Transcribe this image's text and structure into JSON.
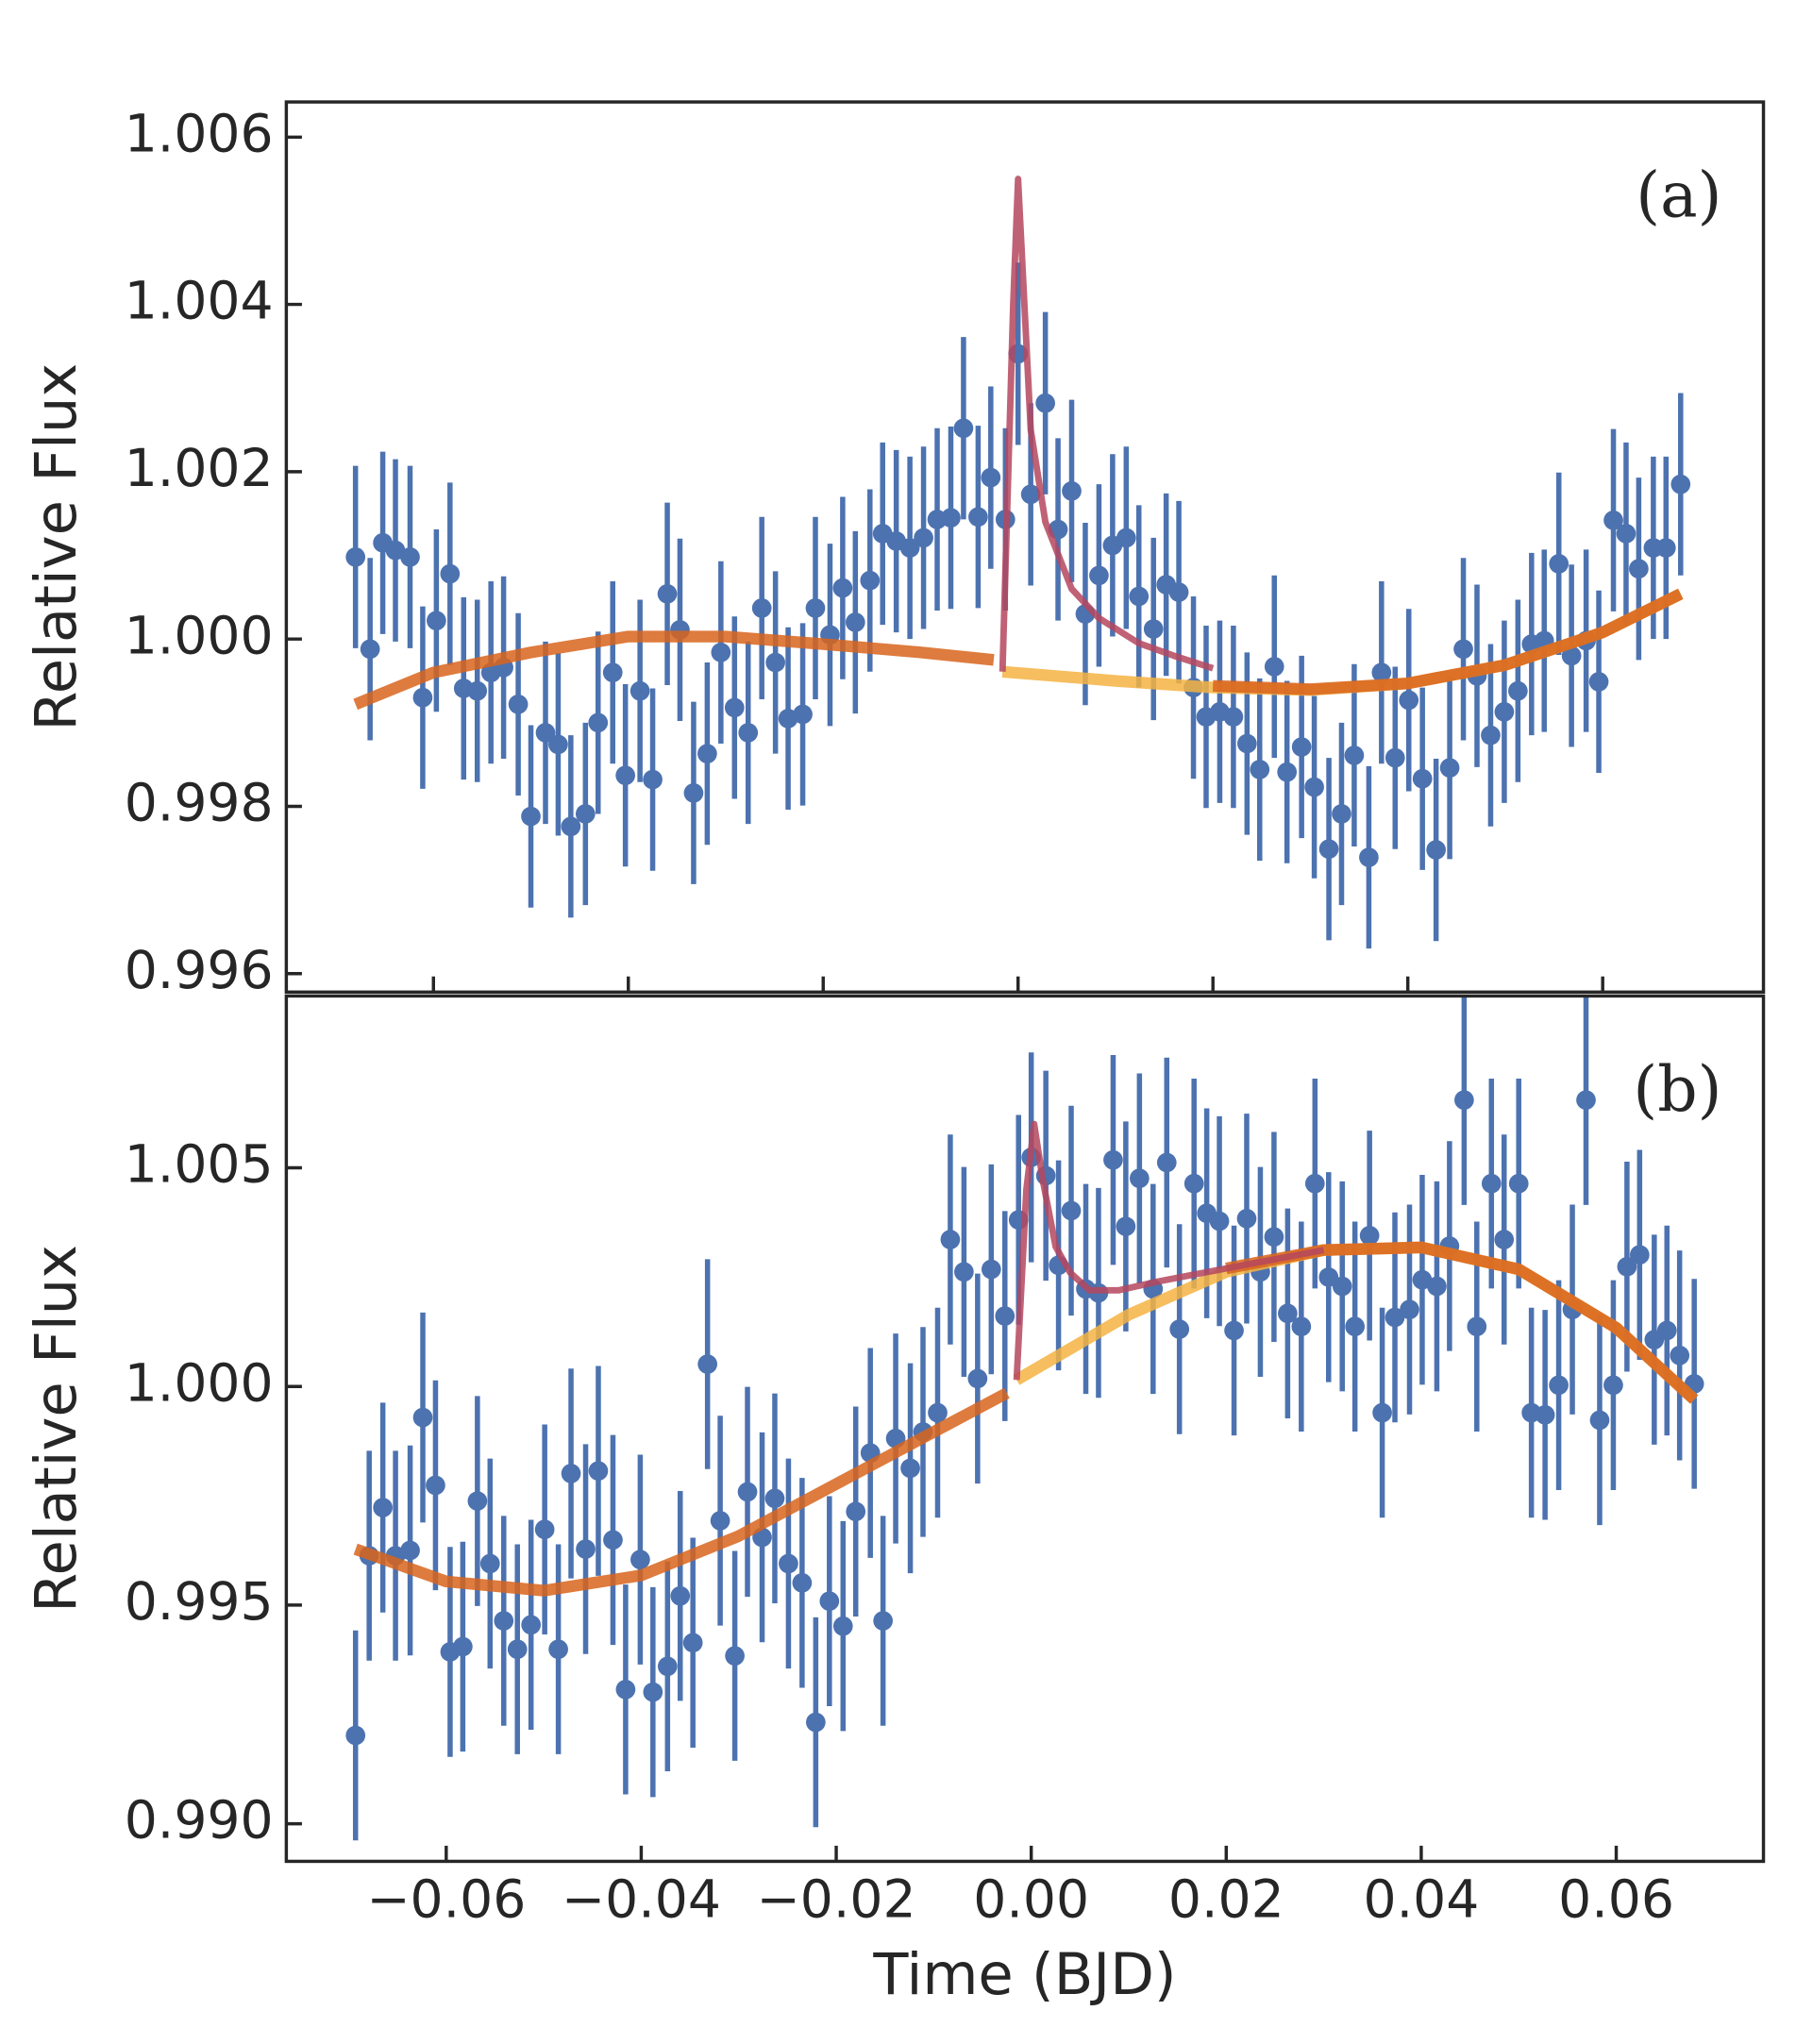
{
  "chart_data": [
    {
      "type": "scatter",
      "annotation": "(a)",
      "ylabel": "Relative Flux",
      "color": "#4c72b0",
      "yerr": 0.00109,
      "x": [
        -0.068,
        -0.0665,
        -0.0652,
        -0.0639,
        -0.0624,
        -0.0611,
        -0.0597,
        -0.0583,
        -0.0569,
        -0.0555,
        -0.0541,
        -0.0528,
        -0.0513,
        -0.05,
        -0.0485,
        -0.0472,
        -0.0459,
        -0.0444,
        -0.0431,
        -0.0416,
        -0.0403,
        -0.0388,
        -0.0375,
        -0.036,
        -0.0347,
        -0.0333,
        -0.0319,
        -0.0305,
        -0.0291,
        -0.0277,
        -0.0263,
        -0.0249,
        -0.0236,
        -0.0221,
        -0.0208,
        -0.0193,
        -0.018,
        -0.0167,
        -0.0152,
        -0.0139,
        -0.0125,
        -0.0111,
        -0.0097,
        -0.0083,
        -0.0069,
        -0.0056,
        -0.0041,
        -0.0028,
        -0.0013,
        0.0,
        0.0013,
        0.0028,
        0.0041,
        0.0055,
        0.0069,
        0.0083,
        0.0097,
        0.0111,
        0.0124,
        0.0139,
        0.0152,
        0.0165,
        0.018,
        0.0193,
        0.0207,
        0.0221,
        0.0235,
        0.0248,
        0.0263,
        0.0276,
        0.0291,
        0.0304,
        0.0319,
        0.0332,
        0.0345,
        0.036,
        0.0373,
        0.0387,
        0.0401,
        0.0415,
        0.0429,
        0.0443,
        0.0457,
        0.0471,
        0.0485,
        0.0499,
        0.0513,
        0.0527,
        0.054,
        0.0555,
        0.0568,
        0.0583,
        0.0596,
        0.0611,
        0.0624,
        0.0637,
        0.0652,
        0.0665,
        0.068
      ],
      "values": [
        1.00098,
        0.99988,
        1.00115,
        1.00106,
        1.00098,
        0.9993,
        1.00022,
        1.00078,
        0.99941,
        0.99938,
        0.9996,
        0.99966,
        0.99922,
        0.99788,
        0.99888,
        0.99874,
        0.99776,
        0.99791,
        0.999,
        0.9996,
        0.99837,
        0.99938,
        0.99832,
        1.00054,
        1.00011,
        0.99816,
        0.99863,
        0.99984,
        0.99918,
        0.99888,
        1.00037,
        0.99972,
        0.99905,
        0.9991,
        1.00037,
        1.00005,
        1.00061,
        1.0002,
        1.0007,
        1.00126,
        1.00117,
        1.00109,
        1.00121,
        1.00143,
        1.00145,
        1.00252,
        1.00146,
        1.00193,
        1.00143,
        1.00341,
        1.00173,
        1.00282,
        1.00131,
        1.00177,
        1.0003,
        1.00076,
        1.00112,
        1.00121,
        1.00051,
        1.00012,
        1.00065,
        1.00056,
        0.99942,
        0.99907,
        0.99913,
        0.99907,
        0.99875,
        0.99844,
        0.99967,
        0.99841,
        0.99871,
        0.99823,
        0.99749,
        0.99791,
        0.99861,
        0.99739,
        0.9996,
        0.99858,
        0.99927,
        0.99833,
        0.99748,
        0.99846,
        0.99988,
        0.99956,
        0.99885,
        0.99913,
        0.99938,
        0.99994,
        0.99998,
        1.0009,
        0.9998,
        0.99998,
        0.99949,
        1.00142,
        1.00126,
        1.00084,
        1.00109,
        1.00109,
        1.00185
      ],
      "lines": [
        {
          "color": "#d8641c",
          "x": [
            -0.068,
            -0.06,
            -0.05,
            -0.04,
            -0.03,
            -0.02,
            -0.01,
            -0.0025
          ],
          "values": [
            0.99922,
            0.9996,
            0.99984,
            1.00003,
            1.00003,
            0.99994,
            0.99984,
            0.99975
          ]
        },
        {
          "color": "#f5b342",
          "x": [
            -0.0016,
            0.01,
            0.02,
            0.03,
            0.04,
            0.05,
            0.06,
            0.068
          ],
          "values": [
            0.99961,
            0.9995,
            0.99942,
            0.99939,
            0.99947,
            0.99969,
            1.00008,
            1.00054
          ]
        },
        {
          "color": "#d8641c",
          "x": [
            0.02,
            0.03,
            0.04,
            0.05,
            0.06,
            0.068
          ],
          "values": [
            0.99944,
            0.9994,
            0.99947,
            0.99969,
            1.00008,
            1.00054
          ]
        },
        {
          "color": "#b5475e",
          "x": [
            -0.0016,
            -0.0005,
            0.0,
            0.0013,
            0.0028,
            0.0055,
            0.0083,
            0.0124,
            0.016,
            0.02
          ],
          "values": [
            0.99961,
            1.004,
            1.0055,
            1.0025,
            1.0014,
            1.0006,
            1.00025,
            0.99995,
            0.9998,
            0.99965
          ]
        }
      ],
      "xlim": [
        -0.0751,
        0.0765
      ],
      "ylim": [
        0.99578,
        1.00642
      ],
      "xticks": [
        -0.06,
        -0.04,
        -0.02,
        0,
        0.02,
        0.04,
        0.06
      ],
      "yticks": [
        0.996,
        0.998,
        {
          "value": 1.0,
          "label": "1.000"
        },
        1.002,
        1.004,
        1.006
      ]
    },
    {
      "type": "scatter",
      "annotation": "(b)",
      "ylabel": "Relative Flux",
      "xlabel": "Time (BJD)",
      "color": "#4c72b0",
      "yerr": 0.0024,
      "x": [
        -0.0693,
        -0.0679,
        -0.0665,
        -0.0652,
        -0.0637,
        -0.0624,
        -0.0611,
        -0.0596,
        -0.0583,
        -0.0568,
        -0.0555,
        -0.0541,
        -0.0527,
        -0.0513,
        -0.0499,
        -0.0485,
        -0.0472,
        -0.0457,
        -0.0444,
        -0.0429,
        -0.0416,
        -0.0401,
        -0.0388,
        -0.0373,
        -0.036,
        -0.0347,
        -0.0332,
        -0.0319,
        -0.0304,
        -0.0291,
        -0.0276,
        -0.0263,
        -0.0249,
        -0.0235,
        -0.0221,
        -0.0207,
        -0.0193,
        -0.018,
        -0.0165,
        -0.0152,
        -0.0139,
        -0.0124,
        -0.0111,
        -0.0096,
        -0.0083,
        -0.0069,
        -0.0055,
        -0.0041,
        -0.0027,
        -0.0013,
        0.0,
        0.0015,
        0.0028,
        0.0041,
        0.0056,
        0.0069,
        0.0084,
        0.0097,
        0.0111,
        0.0125,
        0.0139,
        0.0152,
        0.0167,
        0.018,
        0.0193,
        0.0208,
        0.0221,
        0.0235,
        0.0249,
        0.0263,
        0.0277,
        0.0291,
        0.0305,
        0.0319,
        0.0332,
        0.0347,
        0.036,
        0.0373,
        0.0388,
        0.0401,
        0.0416,
        0.0429,
        0.0444,
        0.0457,
        0.0472,
        0.0485,
        0.05,
        0.0513,
        0.0527,
        0.0541,
        0.0555,
        0.0569,
        0.0583,
        0.0597,
        0.0611,
        0.0624,
        0.0639,
        0.0652,
        0.0665,
        0.068
      ],
      "values": [
        0.99202,
        0.99613,
        0.99723,
        0.99613,
        0.99625,
        0.99929,
        0.99774,
        0.99393,
        0.99405,
        0.99738,
        0.99595,
        0.99464,
        0.99399,
        0.99455,
        0.99673,
        0.99399,
        0.99801,
        0.99628,
        0.99807,
        0.99649,
        0.99307,
        0.99604,
        0.99301,
        0.9936,
        0.99521,
        0.99414,
        1.00051,
        0.99693,
        0.99384,
        0.99759,
        0.99655,
        0.99744,
        0.99595,
        0.99551,
        0.99232,
        0.99509,
        0.99452,
        0.99714,
        0.99848,
        0.99464,
        0.99881,
        0.99813,
        0.99896,
        0.9994,
        1.00336,
        1.00262,
        1.00018,
        1.00268,
        1.00161,
        1.00381,
        1.00524,
        1.00482,
        1.00277,
        1.00402,
        1.00223,
        1.00214,
        1.00518,
        1.00366,
        1.00476,
        1.00223,
        1.00512,
        1.00131,
        1.00464,
        1.00396,
        1.00378,
        1.00128,
        1.00384,
        1.00262,
        1.00342,
        1.00167,
        1.00137,
        1.00464,
        1.0025,
        1.00229,
        1.00137,
        1.00345,
        0.9994,
        1.00158,
        1.00176,
        1.00244,
        1.00229,
        1.00321,
        1.00655,
        1.00137,
        1.00464,
        1.00336,
        1.00464,
        0.9994,
        0.99935,
        1.00003,
        1.00176,
        1.00655,
        0.99923,
        1.00003,
        1.00274,
        1.00301,
        1.00107,
        1.00128,
        1.00071,
        1.00006
      ],
      "lines": [
        {
          "color": "#d8641c",
          "x": [
            -0.0693,
            -0.06,
            -0.05,
            -0.04,
            -0.03,
            -0.02,
            -0.01,
            -0.0025
          ],
          "values": [
            0.99628,
            0.99554,
            0.99533,
            0.99568,
            0.99658,
            0.99777,
            0.99896,
            0.99985
          ]
        },
        {
          "color": "#f5b342",
          "x": [
            -0.0015,
            0.01,
            0.02,
            0.03,
            0.04,
            0.05,
            0.06,
            0.068
          ],
          "values": [
            1.00015,
            1.00164,
            1.00262,
            1.00312,
            1.00318,
            1.00268,
            1.00134,
            0.9997
          ]
        },
        {
          "color": "#d8641c",
          "x": [
            0.02,
            0.03,
            0.04,
            0.05,
            0.06,
            0.068
          ],
          "values": [
            1.0027,
            1.00312,
            1.00318,
            1.00268,
            1.00134,
            0.9997
          ]
        },
        {
          "color": "#b5475e",
          "x": [
            -0.0015,
            -0.0005,
            0.0003,
            0.0012,
            0.0025,
            0.004,
            0.006,
            0.009,
            0.013,
            0.02,
            0.03
          ],
          "values": [
            1.00015,
            1.0045,
            1.006,
            1.0047,
            1.0032,
            1.0026,
            1.0022,
            1.0022,
            1.0024,
            1.0027,
            1.00312
          ]
        }
      ],
      "xlim": [
        -0.0764,
        0.0751
      ],
      "ylim": [
        0.98914,
        1.00893
      ],
      "xticks": [
        {
          "value": -0.06,
          "label": "−0.06"
        },
        {
          "value": -0.04,
          "label": "−0.04"
        },
        {
          "value": -0.02,
          "label": "−0.02"
        },
        {
          "value": 0,
          "label": "0.00"
        },
        0.02,
        0.04,
        0.06
      ],
      "yticks": [
        {
          "value": 0.99,
          "label": "0.990"
        },
        0.995,
        {
          "value": 1.0,
          "label": "1.000"
        },
        1.005
      ]
    }
  ]
}
